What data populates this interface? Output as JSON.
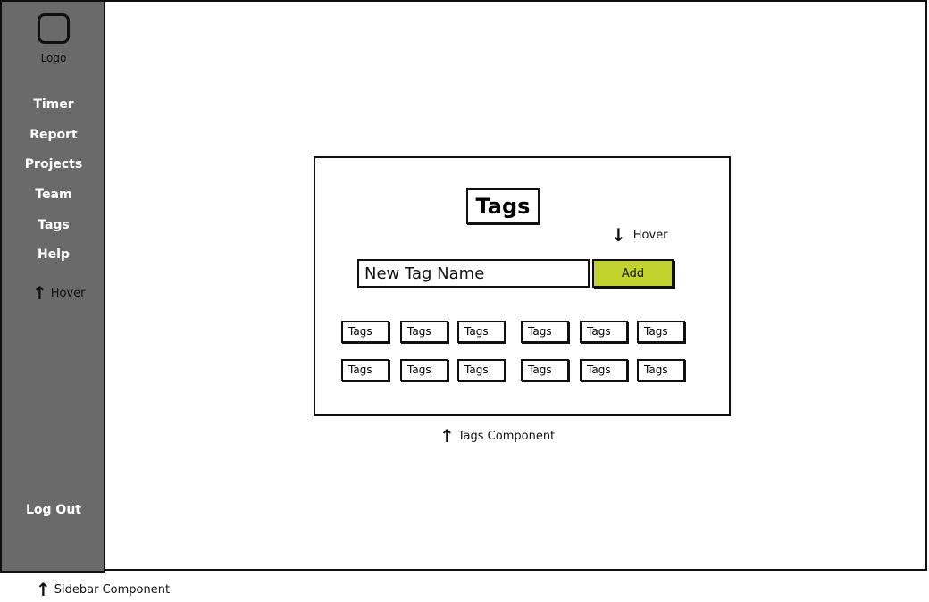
{
  "sidebar": {
    "logo_label": "Logo",
    "items": [
      {
        "label": "Timer"
      },
      {
        "label": "Report"
      },
      {
        "label": "Projects"
      },
      {
        "label": "Team"
      },
      {
        "label": "Tags"
      },
      {
        "label": "Help"
      }
    ],
    "hover_note": "Hover",
    "logout_label": "Log Out"
  },
  "tags_panel": {
    "title": "Tags",
    "input_value": "New Tag Name",
    "add_label": "Add",
    "hover_note": "Hover",
    "rows": [
      [
        "Tags",
        "Tags",
        "Tags",
        "Tags",
        "Tags",
        "Tags"
      ],
      [
        "Tags",
        "Tags",
        "Tags",
        "Tags",
        "Tags",
        "Tags"
      ]
    ]
  },
  "annotations": {
    "tags_component": "Tags Component",
    "sidebar_component": "Sidebar Component"
  },
  "colors": {
    "sidebar_bg": "#6a6a6a",
    "add_button": "#c2d22e"
  }
}
